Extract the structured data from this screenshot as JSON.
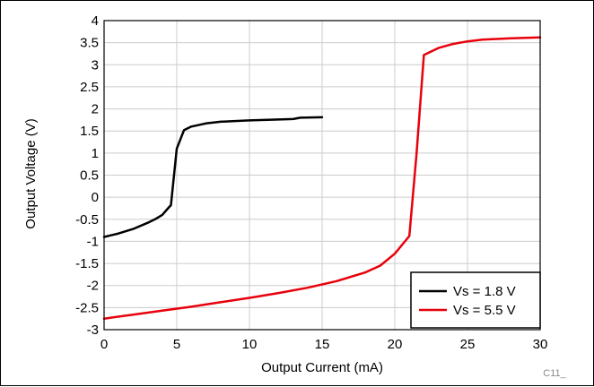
{
  "chart_data": {
    "type": "line",
    "title": "",
    "xlabel": "Output Current (mA)",
    "ylabel": "Output Voltage (V)",
    "xlim": [
      0,
      30
    ],
    "ylim": [
      -3,
      4
    ],
    "x_ticks": [
      0,
      5,
      10,
      15,
      20,
      25,
      30
    ],
    "y_ticks": [
      -3,
      -2.5,
      -2,
      -1.5,
      -1,
      -0.5,
      0,
      0.5,
      1,
      1.5,
      2,
      2.5,
      3,
      3.5,
      4
    ],
    "grid": true,
    "legend_position": "bottom-right",
    "annotation": "C11_",
    "series": [
      {
        "name": "Vs = 1.8 V",
        "color": "#000000",
        "x": [
          0,
          1,
          2,
          3,
          3.5,
          4,
          4.4,
          4.6,
          5.0,
          5.5,
          6,
          7,
          8,
          10,
          12,
          13,
          13.5,
          15
        ],
        "y": [
          -0.9,
          -0.82,
          -0.72,
          -0.58,
          -0.5,
          -0.4,
          -0.25,
          -0.18,
          1.1,
          1.52,
          1.6,
          1.67,
          1.71,
          1.74,
          1.76,
          1.77,
          1.8,
          1.81
        ]
      },
      {
        "name": "Vs = 5.5 V",
        "color": "#e8000b",
        "x": [
          0,
          2,
          4,
          6,
          8,
          10,
          12,
          14,
          16,
          18,
          19,
          20,
          21,
          21.5,
          22,
          23,
          24,
          25,
          26,
          28,
          30
        ],
        "y": [
          -2.75,
          -2.66,
          -2.57,
          -2.48,
          -2.38,
          -2.28,
          -2.17,
          -2.05,
          -1.9,
          -1.7,
          -1.55,
          -1.28,
          -0.88,
          1.0,
          3.22,
          3.38,
          3.47,
          3.53,
          3.57,
          3.6,
          3.62
        ]
      }
    ]
  },
  "palette": {
    "grid": "#cccccc",
    "axis": "#000000"
  }
}
